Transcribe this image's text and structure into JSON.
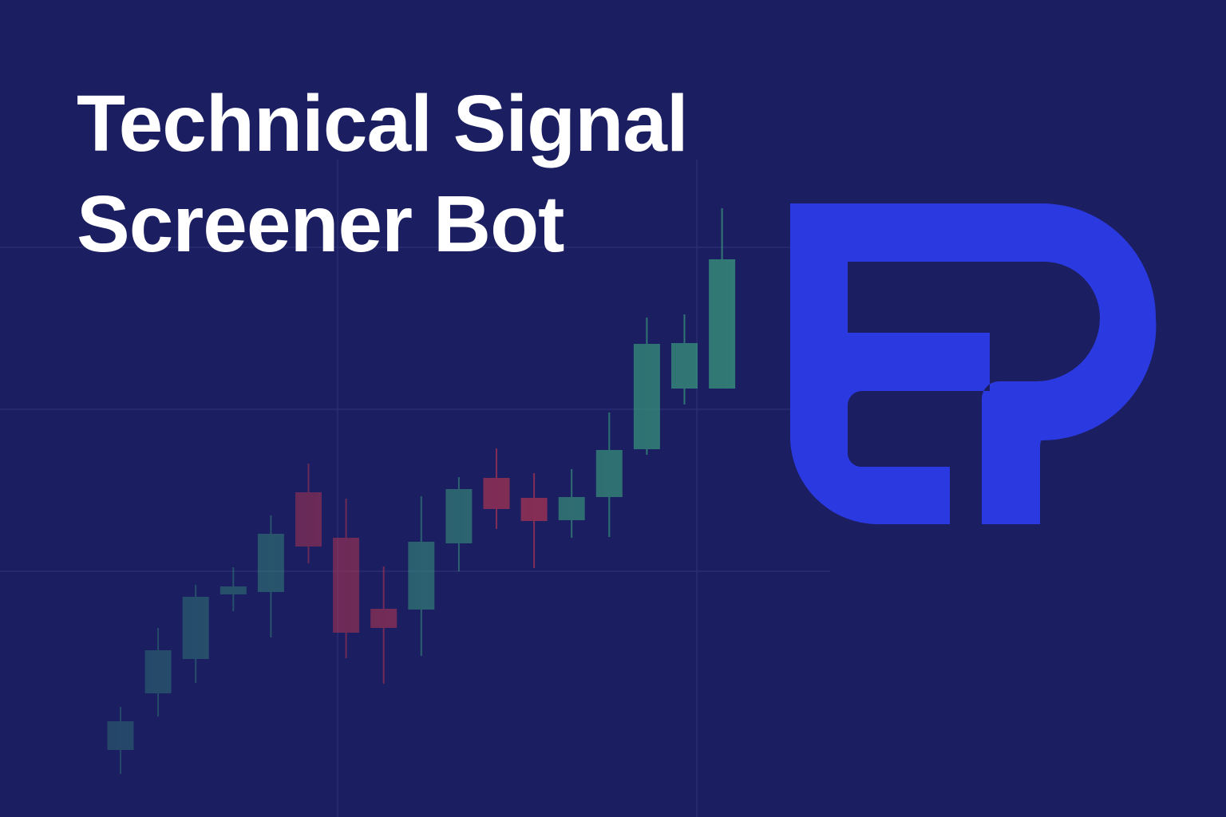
{
  "title": {
    "line1": "Technical Signal",
    "line2": "Screener Bot"
  },
  "colors": {
    "background": "#1b1e60",
    "title_text": "#ffffff",
    "bullish": "#3a9b7d",
    "bearish": "#c8394f",
    "logo": "#2b3ae0",
    "gridline": "#2a2d72"
  },
  "logo": {
    "description_icon": "ep-monogram-logo"
  },
  "chart_data": {
    "type": "candlestick",
    "grid": true,
    "candles": [
      {
        "open": 30,
        "close": 66,
        "high": 84,
        "low": 0
      },
      {
        "open": 101,
        "close": 155,
        "high": 183,
        "low": 72
      },
      {
        "open": 144,
        "close": 222,
        "high": 237,
        "low": 114
      },
      {
        "open": 225,
        "close": 235,
        "high": 259,
        "low": 204
      },
      {
        "open": 228,
        "close": 301,
        "high": 324,
        "low": 171
      },
      {
        "open": 353,
        "close": 285,
        "high": 389,
        "low": 264
      },
      {
        "open": 296,
        "close": 177,
        "high": 345,
        "low": 145
      },
      {
        "open": 207,
        "close": 183,
        "high": 260,
        "low": 113
      },
      {
        "open": 206,
        "close": 291,
        "high": 348,
        "low": 148
      },
      {
        "open": 289,
        "close": 357,
        "high": 372,
        "low": 254
      },
      {
        "open": 371,
        "close": 332,
        "high": 408,
        "low": 307
      },
      {
        "open": 346,
        "close": 317,
        "high": 377,
        "low": 258
      },
      {
        "open": 318,
        "close": 347,
        "high": 382,
        "low": 296
      },
      {
        "open": 347,
        "close": 406,
        "high": 453,
        "low": 297
      },
      {
        "open": 407,
        "close": 539,
        "high": 572,
        "low": 400
      },
      {
        "open": 483,
        "close": 540,
        "high": 576,
        "low": 463
      },
      {
        "open": 483,
        "close": 645,
        "high": 709,
        "low": 483
      }
    ]
  }
}
